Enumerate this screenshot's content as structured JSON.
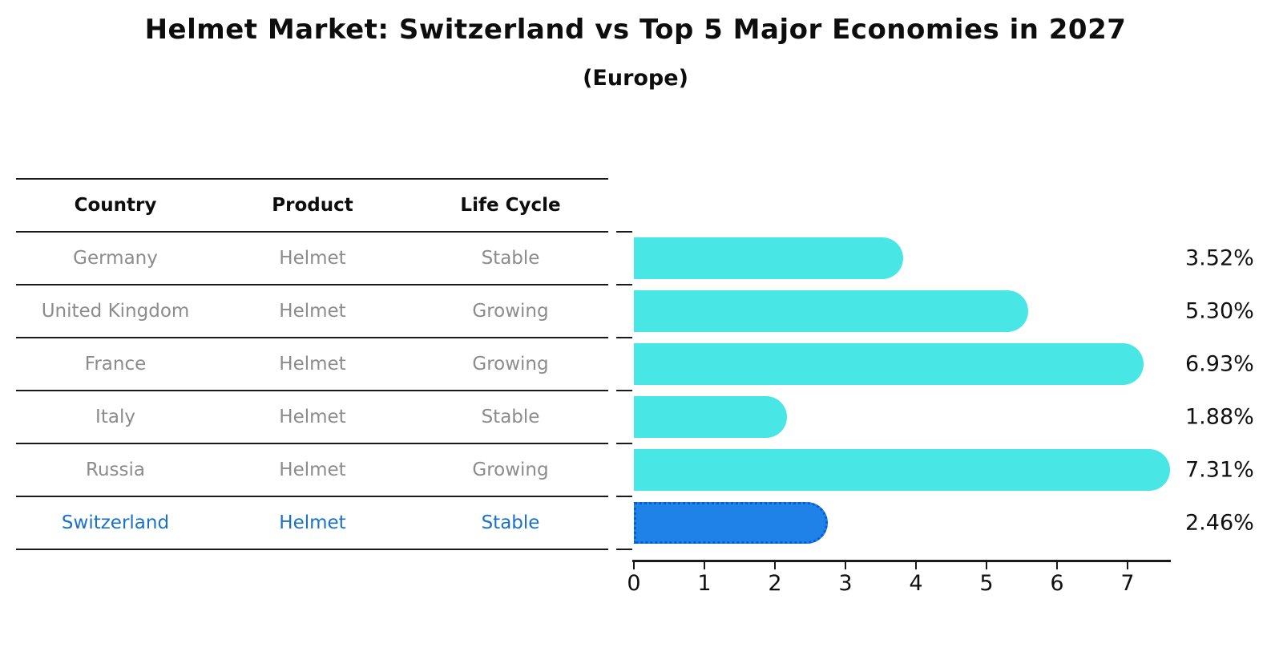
{
  "title": "Helmet Market: Switzerland vs Top 5 Major Economies in 2027",
  "subtitle": "(Europe)",
  "table": {
    "headers": [
      "Country",
      "Product",
      "Life Cycle"
    ],
    "rows": [
      {
        "country": "Germany",
        "product": "Helmet",
        "life_cycle": "Stable",
        "highlighted": false
      },
      {
        "country": "United Kingdom",
        "product": "Helmet",
        "life_cycle": "Growing",
        "highlighted": false
      },
      {
        "country": "France",
        "product": "Helmet",
        "life_cycle": "Growing",
        "highlighted": false
      },
      {
        "country": "Italy",
        "product": "Helmet",
        "life_cycle": "Stable",
        "highlighted": false
      },
      {
        "country": "Russia",
        "product": "Helmet",
        "life_cycle": "Growing",
        "highlighted": false
      },
      {
        "country": "Switzerland",
        "product": "Helmet",
        "life_cycle": "Stable",
        "highlighted": true
      }
    ]
  },
  "chart_data": {
    "type": "bar",
    "orientation": "horizontal",
    "title": "Helmet Market: Switzerland vs Top 5 Major Economies in 2027",
    "subtitle": "(Europe)",
    "categories": [
      "Germany",
      "United Kingdom",
      "France",
      "Italy",
      "Russia",
      "Switzerland"
    ],
    "values": [
      3.52,
      5.3,
      6.93,
      1.88,
      7.31,
      2.46
    ],
    "value_labels": [
      "3.52%",
      "5.30%",
      "6.93%",
      "1.88%",
      "7.31%",
      "2.46%"
    ],
    "unit": "%",
    "highlighted_category": "Switzerland",
    "x_ticks": [
      0,
      1,
      2,
      3,
      4,
      5,
      6,
      7
    ],
    "xlim": [
      0,
      7.6
    ],
    "grid": false,
    "legend": false
  },
  "colors": {
    "bar_default": "#48e6e4",
    "bar_highlight": "#1e82e8",
    "bar_highlight_border": "#0c5bd0",
    "highlight_text": "#1a72c8",
    "table_text": "#8c8c8c",
    "heading_text": "#0d0d0d",
    "axis": "#1a1a1a"
  }
}
